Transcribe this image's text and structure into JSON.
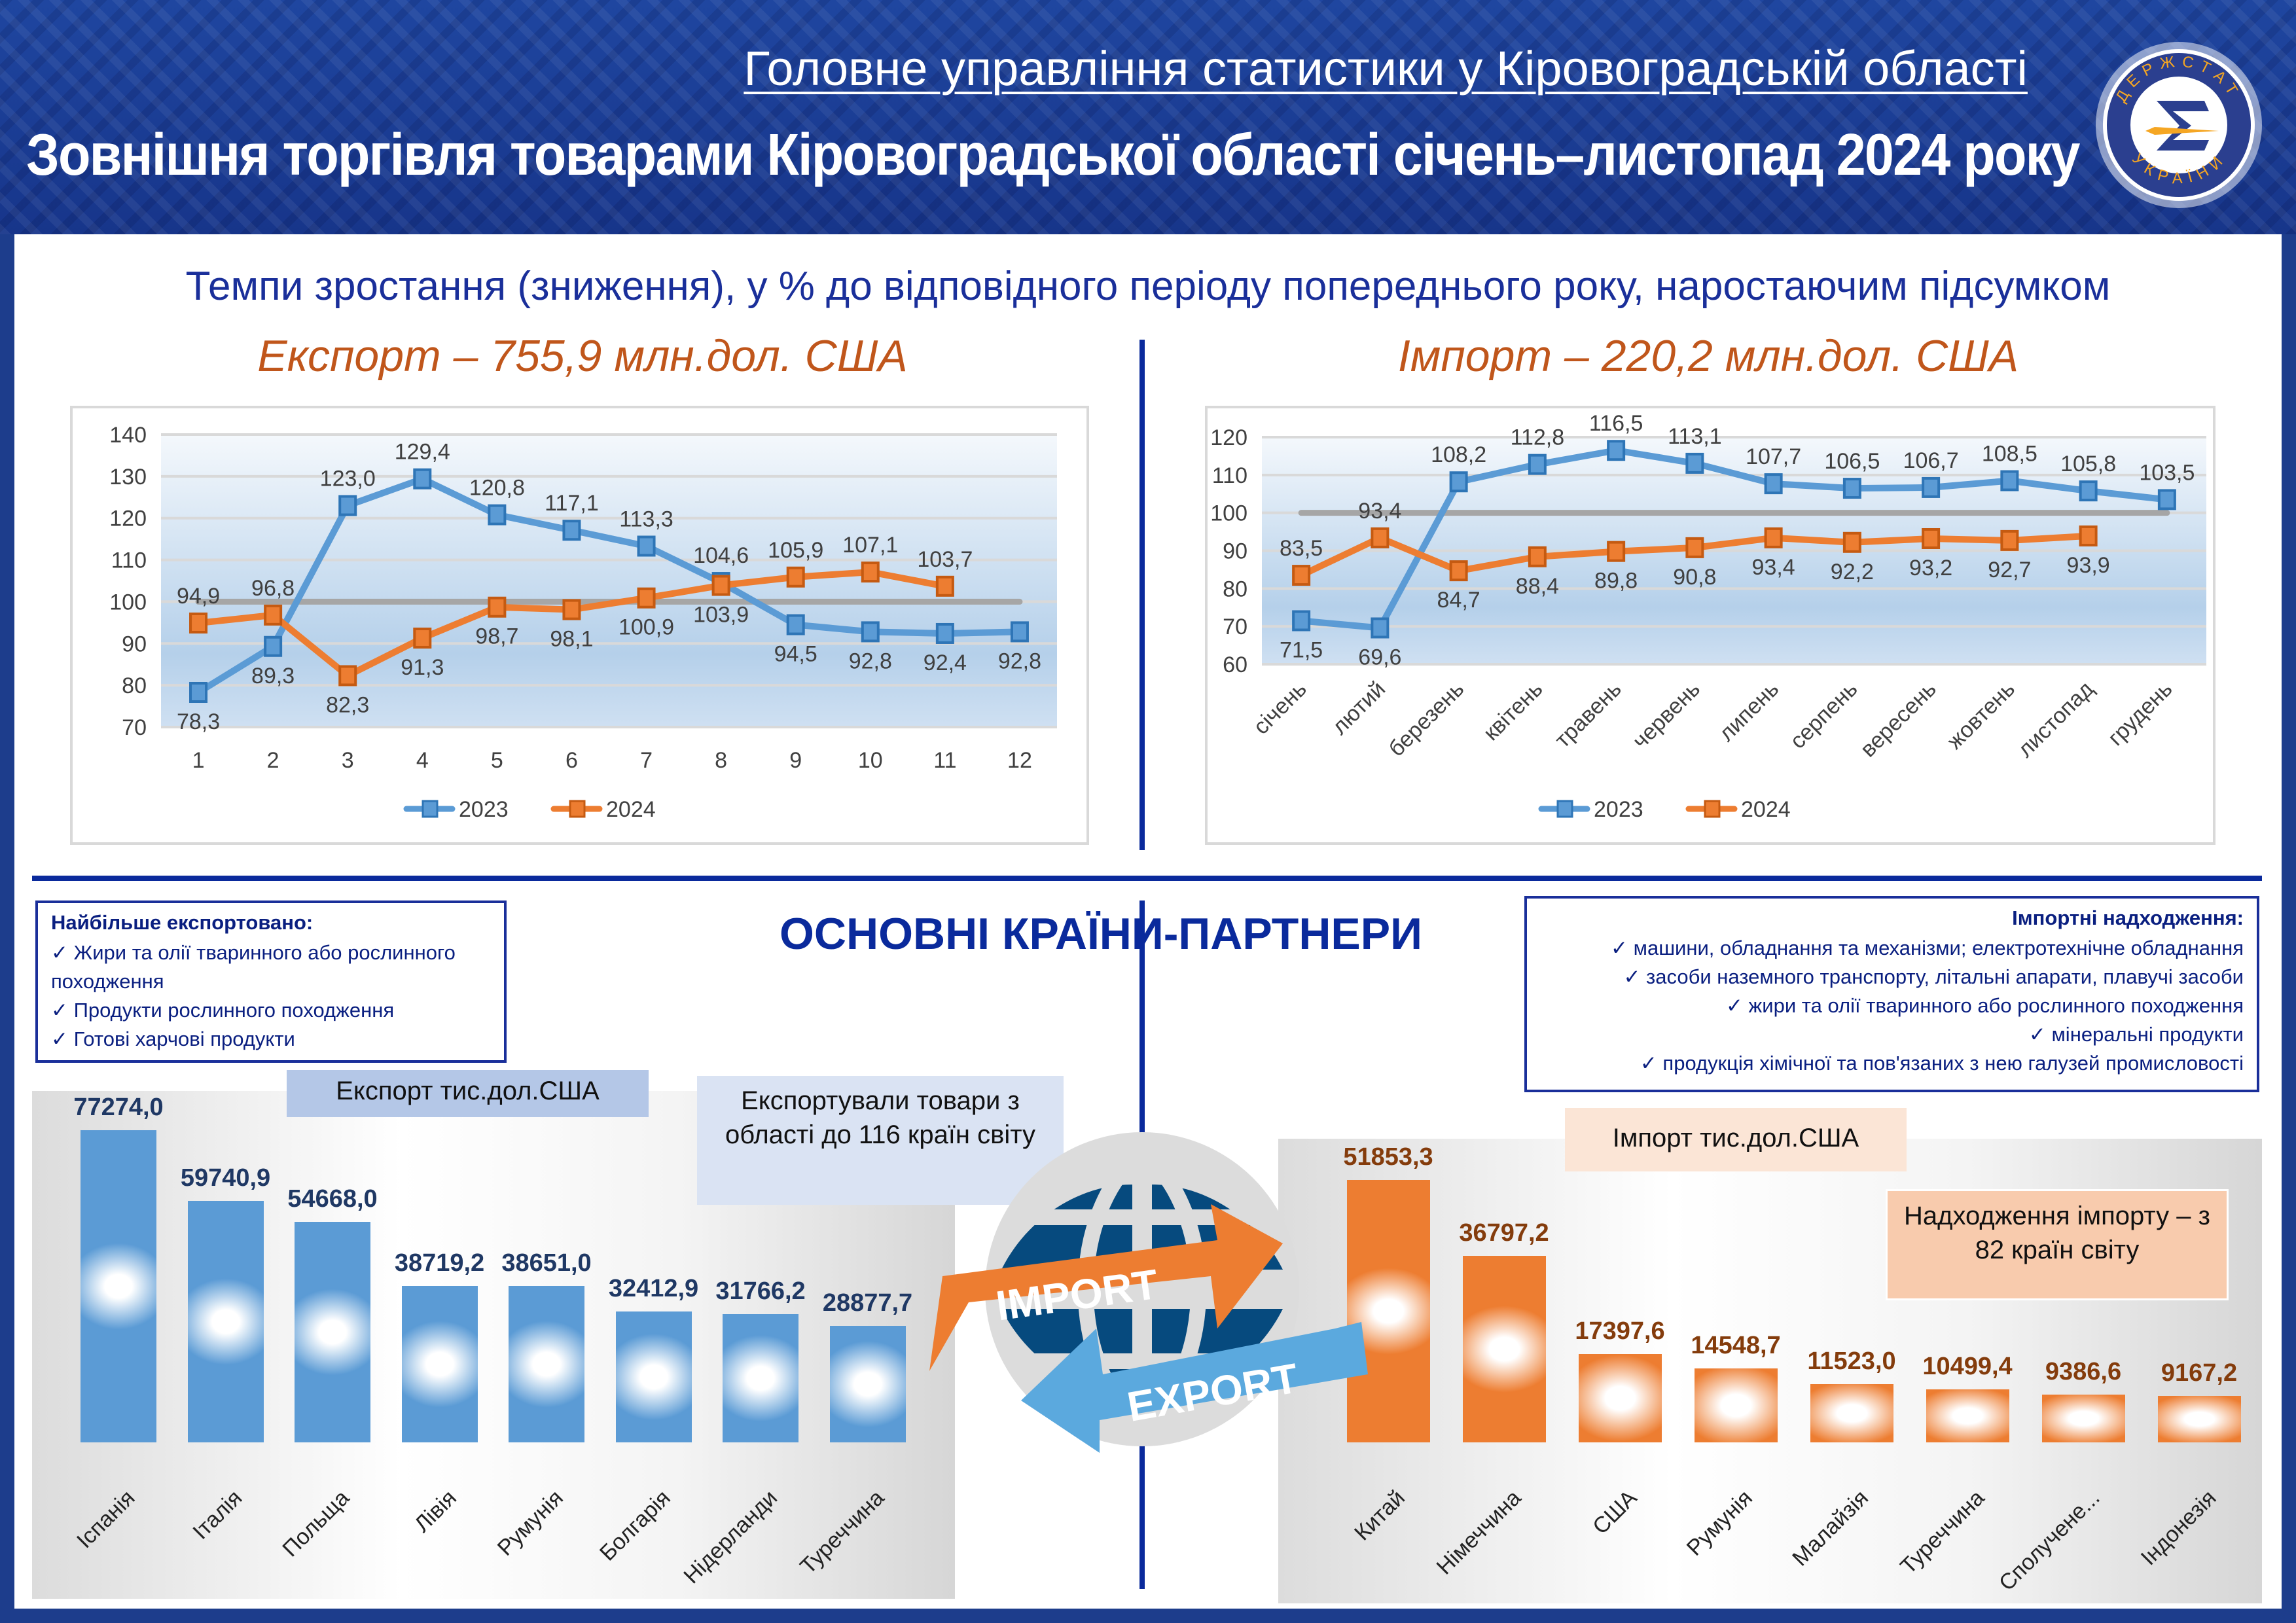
{
  "header": {
    "agency": "Головне управління статистики у Кіровоградській області",
    "title": "Зовнішня торгівля товарами Кіровоградської області січень–листопад 2024 року",
    "logo_text_top": "ДЕРЖСТАТ",
    "logo_text_bottom": "УКРАЇНИ"
  },
  "subtitle": "Темпи зростання (зниження), у % до відповідного періоду попереднього року, наростаючим підсумком",
  "export_title": "Експорт – 755,9 млн.дол. США",
  "import_title": "Імпорт – 220,2 млн.дол. США",
  "partners_title": "ОСНОВНІ КРАЇНИ-ПАРТНЕРИ",
  "export_list": {
    "title": "Найбільше експортовано:",
    "items": [
      "Жири та олії тваринного або рослинного походження",
      "Продукти рослинного походження",
      "Готові харчові продукти"
    ]
  },
  "import_list": {
    "title": "Імпортні надходження:",
    "items": [
      "машини, обладнання та механізми; електротехнічне обладнання",
      "засоби наземного транспорту, літальні апарати, плавучі засоби",
      "жири та олії тваринного або рослинного походження",
      "мінеральні продукти",
      "продукція хімічної та пов'язаних з нею галузей промисловості"
    ]
  },
  "export_bars_label": "Експорт тис.дол.США",
  "export_note": "Експортували товари з області до 116 країн світу",
  "import_bars_label": "Імпорт тис.дол.США",
  "import_note": "Надходження імпорту – з 82 країн світу",
  "globe": {
    "import": "IMPORT",
    "export": "EXPORT"
  },
  "colors": {
    "s2023": "#5b9bd5",
    "s2024": "#ed7d31",
    "ref": "#a6a6a6",
    "export_bar": "#5b9bd5",
    "import_bar": "#ed7d31",
    "export_val": "#1f3864",
    "import_val": "#843c0c"
  },
  "chart_data": [
    {
      "type": "line",
      "id": "export-growth",
      "categories": [
        "1",
        "2",
        "3",
        "4",
        "5",
        "6",
        "7",
        "8",
        "9",
        "10",
        "11",
        "12"
      ],
      "ylim": [
        70,
        140
      ],
      "yticks": [
        70,
        80,
        90,
        100,
        110,
        120,
        130,
        140
      ],
      "reference": 100,
      "grid": true,
      "legend": "bottom",
      "series": [
        {
          "name": "2023",
          "values": [
            78.3,
            89.3,
            123.0,
            129.4,
            120.8,
            117.1,
            113.3,
            104.6,
            94.5,
            92.8,
            92.4,
            92.8
          ]
        },
        {
          "name": "2024",
          "values": [
            94.9,
            96.8,
            82.3,
            91.3,
            98.7,
            98.1,
            100.9,
            103.9,
            105.9,
            107.1,
            103.7,
            null
          ]
        }
      ]
    },
    {
      "type": "line",
      "id": "import-growth",
      "categories": [
        "січень",
        "лютий",
        "березень",
        "квітень",
        "травень",
        "червень",
        "липень",
        "серпень",
        "вересень",
        "жовтень",
        "листопад",
        "грудень"
      ],
      "ylim": [
        60,
        120
      ],
      "yticks": [
        60,
        70,
        80,
        90,
        100,
        110,
        120
      ],
      "reference": 100,
      "grid": true,
      "legend": "bottom",
      "series": [
        {
          "name": "2023",
          "values": [
            71.5,
            69.6,
            108.2,
            112.8,
            116.5,
            113.1,
            107.7,
            106.5,
            106.7,
            108.5,
            105.8,
            103.5
          ]
        },
        {
          "name": "2024",
          "values": [
            83.5,
            93.4,
            84.7,
            88.4,
            89.8,
            90.8,
            93.4,
            92.2,
            93.2,
            92.7,
            93.9,
            null
          ]
        }
      ]
    },
    {
      "type": "bar",
      "id": "export-countries",
      "title": "Експорт тис.дол.США",
      "categories": [
        "Іспанія",
        "Італія",
        "Польща",
        "Лівія",
        "Румунія",
        "Болгарія",
        "Нідерланди",
        "Туреччина"
      ],
      "values": [
        77274.0,
        59740.9,
        54668.0,
        38719.2,
        38651.0,
        32412.9,
        31766.2,
        28877.7
      ],
      "labels": [
        "77274,0",
        "59740,9",
        "54668,0",
        "38719,2",
        "38651,0",
        "32412,9",
        "31766,2",
        "28877,7"
      ]
    },
    {
      "type": "bar",
      "id": "import-countries",
      "title": "Імпорт тис.дол.США",
      "categories": [
        "Китай",
        "Німеччина",
        "США",
        "Румунія",
        "Малайзія",
        "Туреччина",
        "Сполучене...",
        "Індонезія"
      ],
      "values": [
        51853.3,
        36797.2,
        17397.6,
        14548.7,
        11523.0,
        10499.4,
        9386.6,
        9167.2
      ],
      "labels": [
        "51853,3",
        "36797,2",
        "17397,6",
        "14548,7",
        "11523,0",
        "10499,4",
        "9386,6",
        "9167,2"
      ]
    }
  ]
}
